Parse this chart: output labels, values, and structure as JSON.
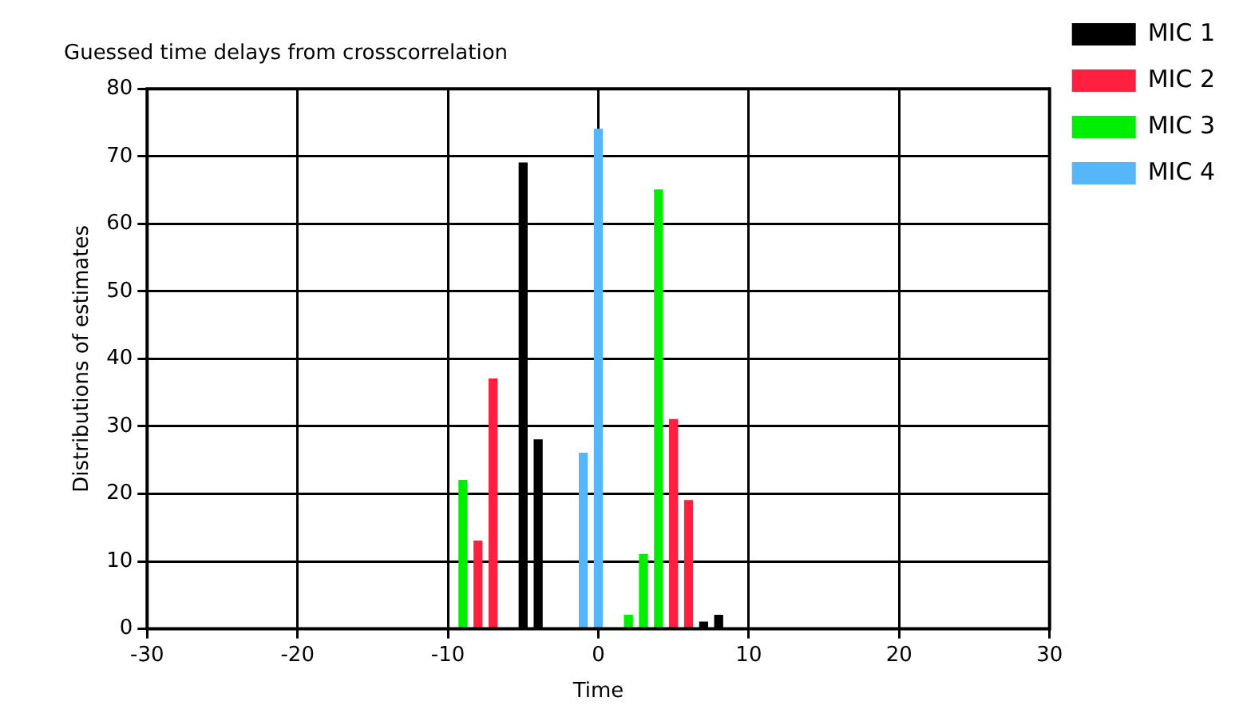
{
  "chart_data": {
    "type": "bar",
    "title": "Guessed time delays from crosscorrelation",
    "xlabel": "Time",
    "ylabel": "Distributions of estimates",
    "xlim": [
      -30,
      30
    ],
    "xticks": [
      -30,
      -20,
      -10,
      0,
      10,
      20,
      30
    ],
    "ylim": [
      0,
      80
    ],
    "yticks": [
      0,
      10,
      20,
      30,
      40,
      50,
      60,
      70,
      80
    ],
    "grid": true,
    "legend": "top right",
    "series": [
      {
        "name": "MIC 1",
        "color": "#000000",
        "x": [
          -5,
          -4,
          7,
          8
        ],
        "values": [
          69,
          28,
          1,
          2
        ]
      },
      {
        "name": "MIC 2",
        "color": "#ff1f3f",
        "x": [
          -8,
          -7,
          5,
          6
        ],
        "values": [
          13,
          37,
          31,
          19
        ]
      },
      {
        "name": "MIC 3",
        "color": "#00ee00",
        "x": [
          -9,
          2,
          3,
          4
        ],
        "values": [
          22,
          2,
          11,
          65
        ]
      },
      {
        "name": "MIC 4",
        "color": "#55b6fa",
        "x": [
          -1,
          0
        ],
        "values": [
          26,
          74
        ]
      }
    ]
  }
}
